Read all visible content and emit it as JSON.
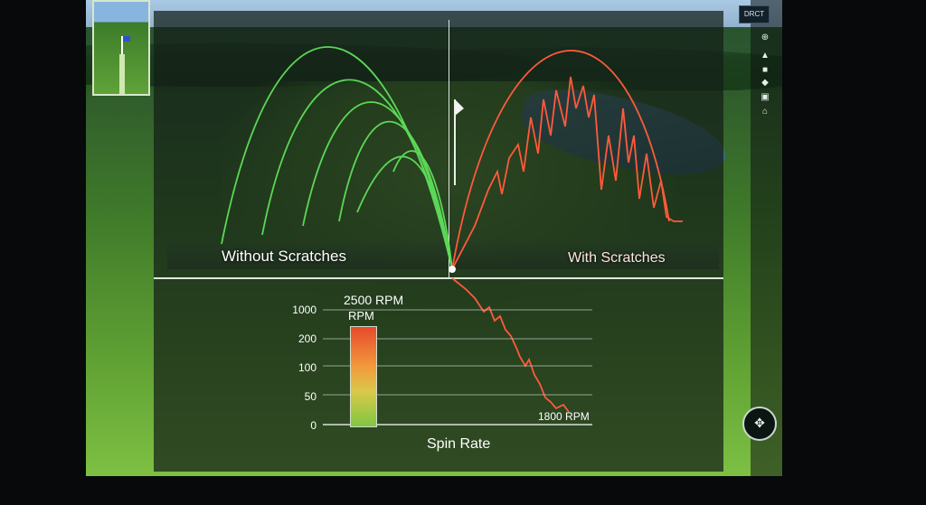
{
  "labels": {
    "left_trajectory": "Without Scratches",
    "right_trajectory": "With Scratches"
  },
  "top_right": {
    "mode_button": "DRCT"
  },
  "spin_chart": {
    "title": "Spin Rate",
    "high_label": "2500 RPM",
    "high_unit": "RPM",
    "low_label": "1800 RPM",
    "y_ticks": [
      "1000",
      "200",
      "100",
      "50",
      "0"
    ]
  },
  "icons": [
    "minimap-icon",
    "compass-icon",
    "person-icon",
    "tee-icon",
    "flag-icon",
    "camera-icon",
    "home-icon",
    "navigation-pad-icon"
  ],
  "colors": {
    "clean_trajectory": "#5fe05a",
    "scratched_trajectory": "#ff5a3c",
    "divider": "#dfe7e2"
  }
}
